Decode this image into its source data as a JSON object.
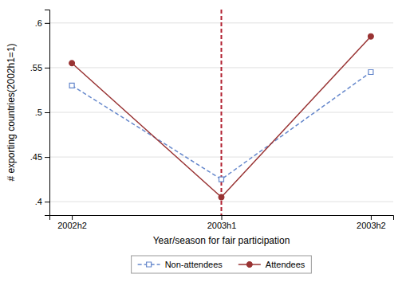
{
  "chart_data": {
    "type": "line",
    "categories": [
      "2002h2",
      "2003h1",
      "2003h2"
    ],
    "series": [
      {
        "name": "Non-attendees",
        "color": "#6688cc",
        "marker": "square",
        "line_style": "dashed",
        "values": [
          0.53,
          0.425,
          0.545
        ]
      },
      {
        "name": "Attendees",
        "color": "#993333",
        "marker": "circle",
        "line_style": "solid",
        "values": [
          0.555,
          0.405,
          0.585
        ]
      }
    ],
    "xlabel": "Year/season for fair participation",
    "ylabel": "# exporting countries(2002h1=1)",
    "ylim": [
      0.385,
      0.615
    ],
    "yticks": [
      {
        "value": 0.4,
        "label": ".4"
      },
      {
        "value": 0.45,
        "label": ".45"
      },
      {
        "value": 0.5,
        "label": ".5"
      },
      {
        "value": 0.55,
        "label": ".55"
      },
      {
        "value": 0.6,
        "label": ".6"
      }
    ],
    "vline": {
      "x": "2003h1",
      "color": "#b22030",
      "line_style": "dashed"
    },
    "grid": true,
    "legend": "bottom"
  }
}
